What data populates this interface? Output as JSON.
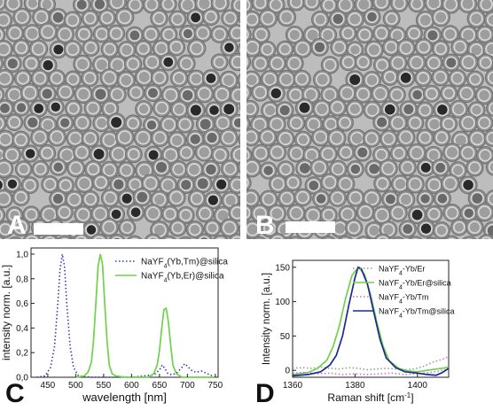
{
  "panels": {
    "a_label": "A",
    "b_label": "B",
    "c_label": "C",
    "d_label": "D"
  },
  "chart_data": [
    {
      "type": "line",
      "panel": "C",
      "xlabel": "wavelength [nm]",
      "ylabel": "intensity norm. [a.u.]",
      "xlim": [
        420,
        755
      ],
      "ylim": [
        0,
        1.05
      ],
      "xticks": [
        450,
        500,
        550,
        600,
        650,
        700,
        750
      ],
      "yticks": [
        "0,0",
        "0,2",
        "0,4",
        "0,6",
        "0,8",
        "1,0"
      ],
      "legend_position": "top-right",
      "series": [
        {
          "name": "NaYF4(Yb,Tm)@silica",
          "color": "#3a3aa8",
          "style": "dotted",
          "x": [
            430,
            445,
            455,
            462,
            468,
            472,
            476,
            480,
            484,
            490,
            496,
            505,
            530,
            600,
            640,
            650,
            655,
            660,
            665,
            672,
            680,
            690,
            695,
            700,
            706,
            715,
            725,
            740,
            750
          ],
          "y": [
            0.0,
            0.01,
            0.08,
            0.25,
            0.6,
            0.88,
            1.0,
            0.9,
            0.6,
            0.25,
            0.08,
            0.01,
            0.0,
            0.0,
            0.02,
            0.06,
            0.1,
            0.07,
            0.03,
            0.02,
            0.03,
            0.08,
            0.11,
            0.09,
            0.06,
            0.04,
            0.05,
            0.02,
            0.0
          ]
        },
        {
          "name": "NaYF4(Yb,Er)@silica",
          "color": "#6fd24a",
          "style": "solid",
          "x": [
            500,
            515,
            522,
            528,
            532,
            536,
            540,
            544,
            548,
            552,
            556,
            560,
            565,
            572,
            590,
            630,
            640,
            646,
            650,
            654,
            658,
            662,
            666,
            670,
            674,
            680,
            690,
            700,
            720,
            740,
            750
          ],
          "y": [
            0.0,
            0.01,
            0.04,
            0.12,
            0.3,
            0.6,
            0.9,
            1.0,
            0.92,
            0.6,
            0.3,
            0.1,
            0.03,
            0.01,
            0.0,
            0.0,
            0.03,
            0.1,
            0.22,
            0.4,
            0.55,
            0.56,
            0.45,
            0.26,
            0.1,
            0.03,
            0.0,
            0.0,
            0.0,
            0.0,
            0.0
          ]
        }
      ]
    },
    {
      "type": "line",
      "panel": "D",
      "xlabel": "Raman shift [cm",
      "xlabel_sup": "-1",
      "xlabel_end": "]",
      "ylabel": "Intensity norm. [a.u.]",
      "xlim": [
        1360,
        1410
      ],
      "ylim": [
        -10,
        160
      ],
      "xticks": [
        1360,
        1380,
        1400
      ],
      "yticks": [
        0,
        50,
        100,
        150
      ],
      "legend_position": "top-right",
      "series": [
        {
          "name": "NaYF4-Yb/Er",
          "color": "#9a9a9a",
          "style": "dotted",
          "x": [
            1360,
            1363,
            1366,
            1369,
            1372,
            1375,
            1378,
            1381,
            1384,
            1387,
            1390,
            1393,
            1396,
            1399,
            1402,
            1405,
            1408,
            1410
          ],
          "y": [
            3,
            4,
            3,
            5,
            3,
            2,
            4,
            3,
            1,
            2,
            3,
            2,
            1,
            2,
            6,
            12,
            16,
            20
          ]
        },
        {
          "name": "NaYF4-Yb/Er@silica",
          "color": "#6fd24a",
          "style": "solid",
          "x": [
            1360,
            1365,
            1368,
            1371,
            1373,
            1375,
            1377,
            1379,
            1381,
            1383,
            1385,
            1387,
            1389,
            1391,
            1394,
            1397,
            1400,
            1403,
            1406,
            1408,
            1410
          ],
          "y": [
            -6,
            -3,
            3,
            15,
            35,
            65,
            105,
            138,
            150,
            140,
            110,
            70,
            35,
            14,
            3,
            -1,
            -2,
            0,
            2,
            3,
            5
          ]
        },
        {
          "name": "NaYF4-Yb/Tm",
          "color": "#b07ad2",
          "style": "dotted",
          "x": [
            1360,
            1364,
            1368,
            1372,
            1376,
            1380,
            1384,
            1388,
            1392,
            1396,
            1400,
            1404,
            1408,
            1410
          ],
          "y": [
            -4,
            -3,
            -5,
            -4,
            -6,
            -5,
            -6,
            -5,
            -4,
            -6,
            -5,
            -3,
            0,
            2
          ]
        },
        {
          "name": "NaYF4-Yb/Tm@silica",
          "color": "#1c2a8f",
          "style": "solid",
          "x": [
            1360,
            1365,
            1369,
            1372,
            1374,
            1376,
            1378,
            1380,
            1381,
            1382,
            1384,
            1386,
            1388,
            1390,
            1393,
            1396,
            1400,
            1403,
            1406,
            1408,
            1410
          ],
          "y": [
            -8,
            -6,
            -2,
            8,
            22,
            50,
            95,
            135,
            150,
            148,
            125,
            85,
            45,
            18,
            4,
            -2,
            -4,
            -6,
            -7,
            -3,
            3
          ]
        }
      ]
    }
  ]
}
